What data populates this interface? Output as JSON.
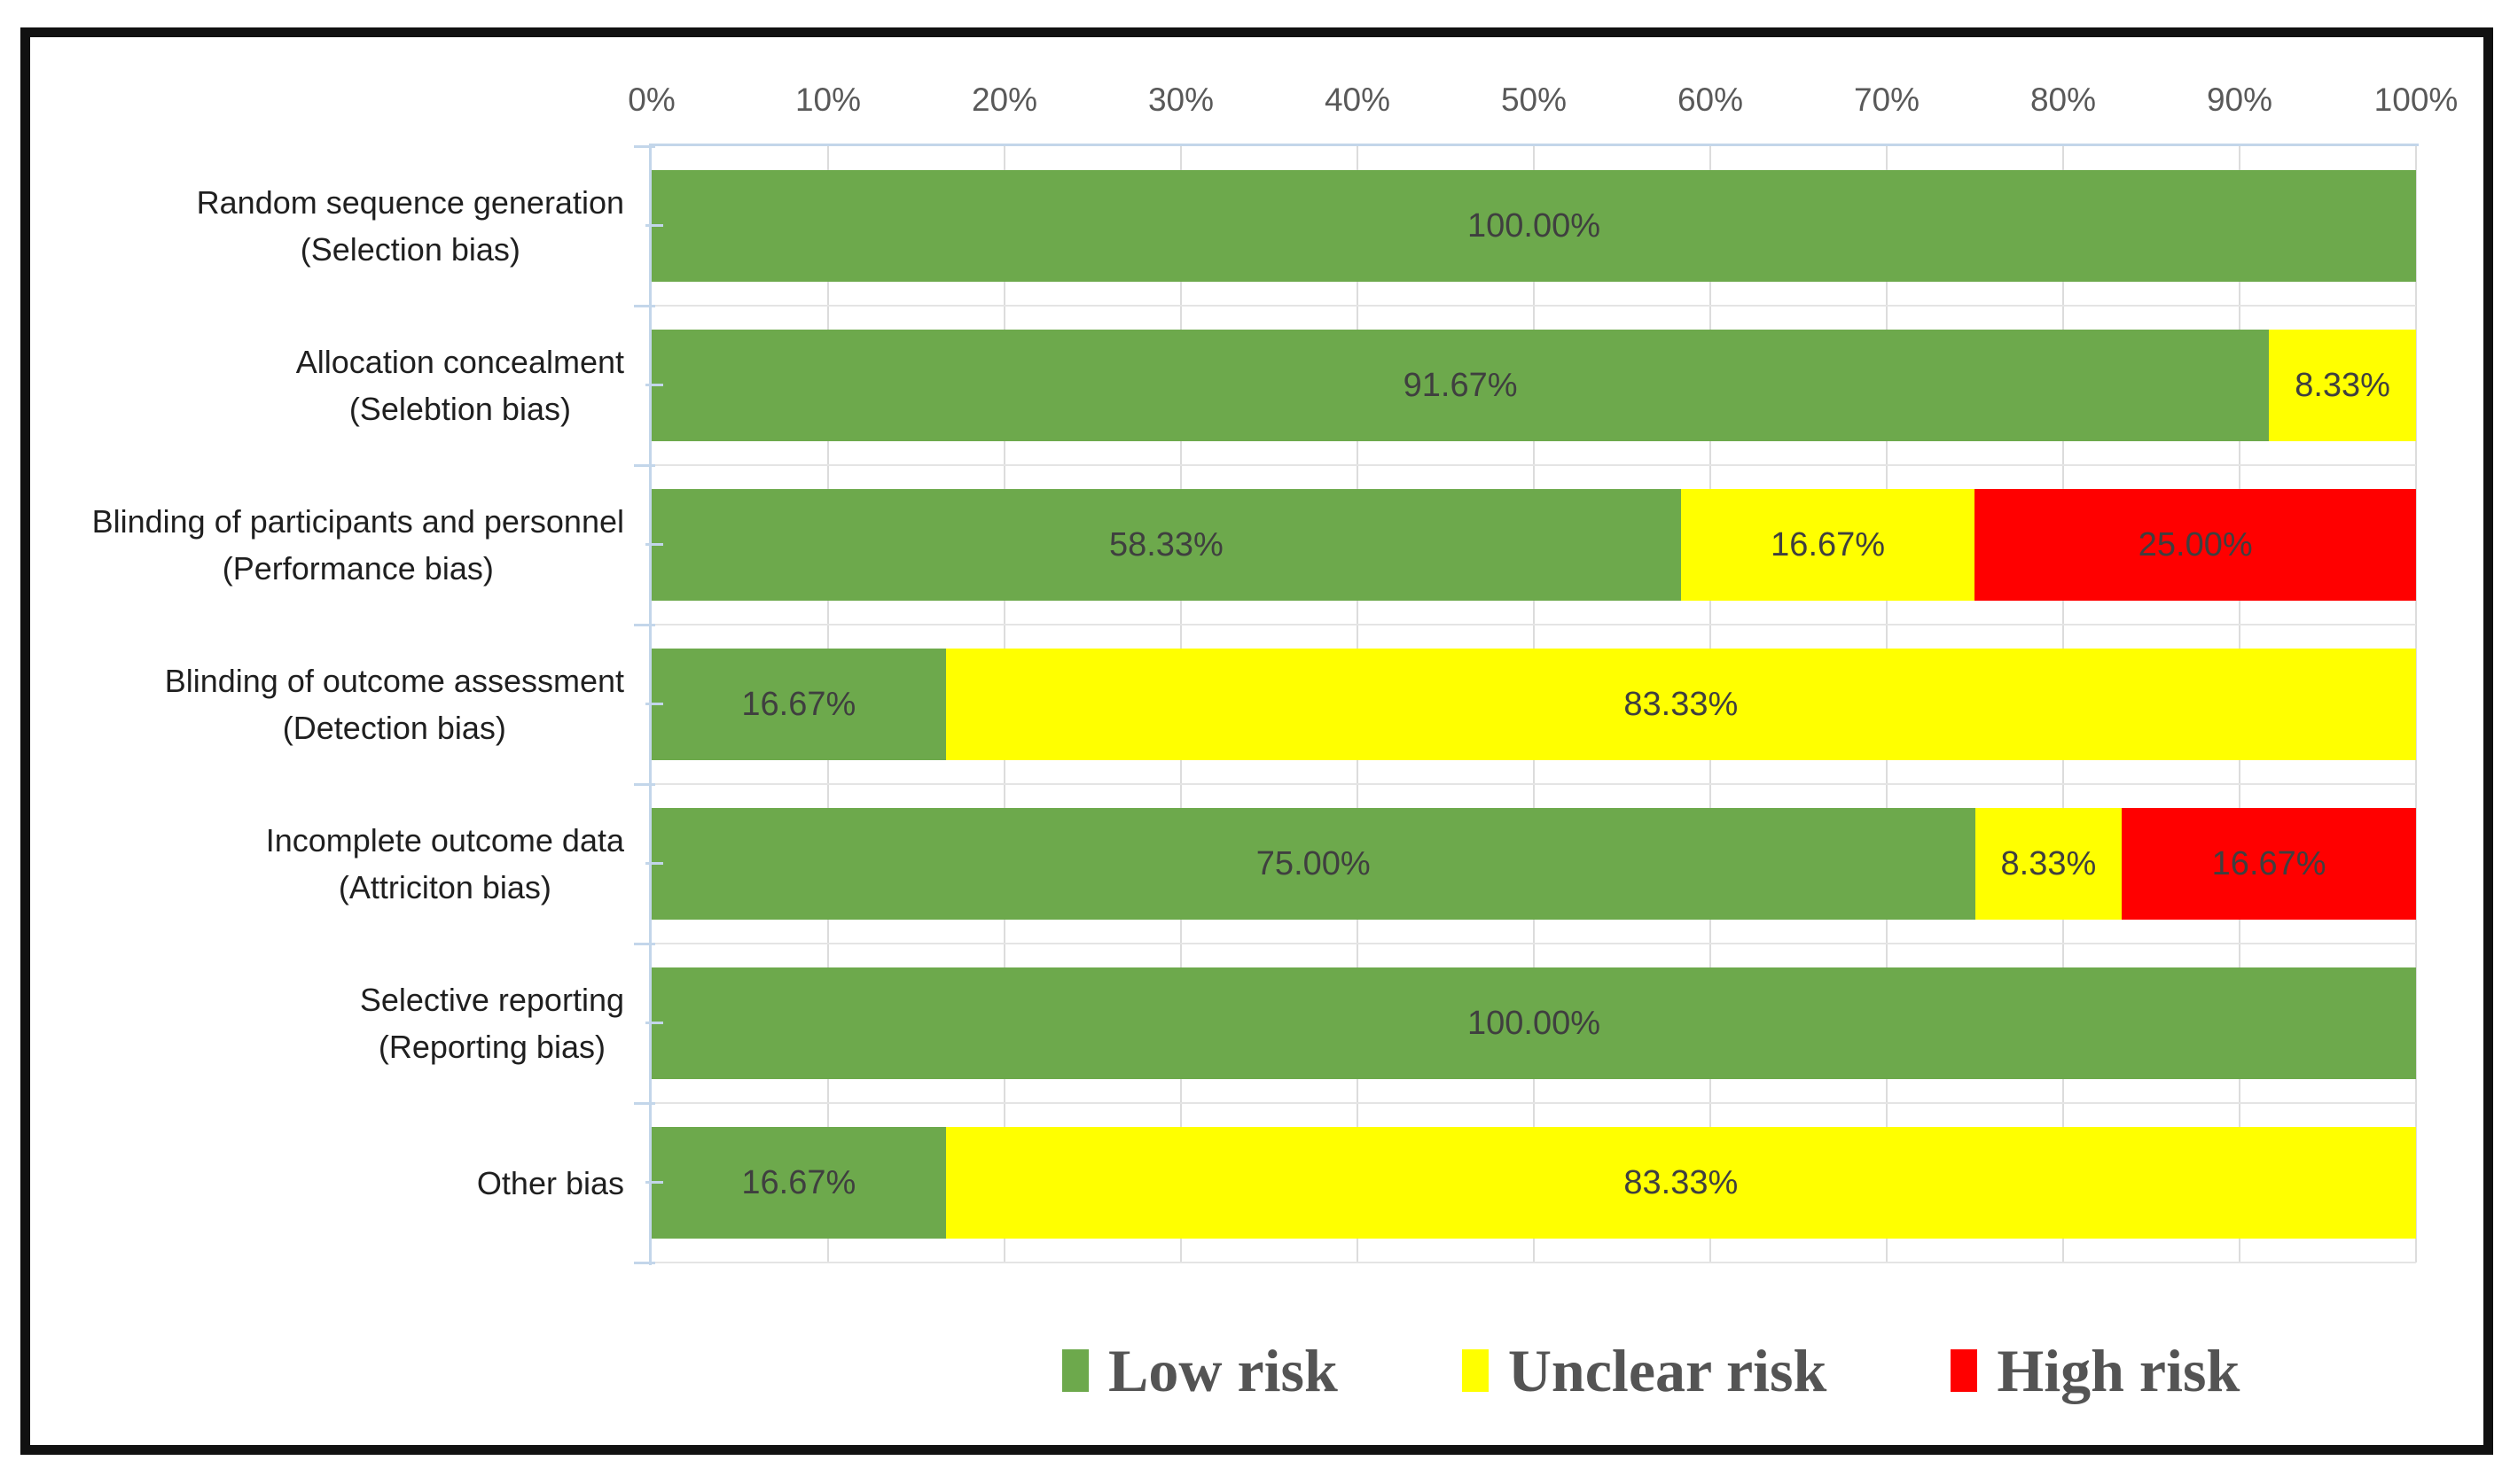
{
  "chart_data": {
    "type": "bar",
    "orientation": "horizontal",
    "stacked": true,
    "title": "",
    "x_axis": {
      "position": "top",
      "min": 0,
      "max": 100,
      "unit": "%",
      "tick_labels": [
        "0%",
        "10%",
        "20%",
        "30%",
        "40%",
        "50%",
        "60%",
        "70%",
        "80%",
        "90%",
        "100%"
      ]
    },
    "categories": [
      {
        "lines": [
          "Random sequence generation",
          "(Selection bias)"
        ]
      },
      {
        "lines": [
          "Allocation concealment",
          "(Selebtion bias)"
        ]
      },
      {
        "lines": [
          "Blinding of participants and personnel",
          "(Performance bias)"
        ]
      },
      {
        "lines": [
          "Blinding of outcome assessment",
          "(Detection bias)"
        ]
      },
      {
        "lines": [
          "Incomplete outcome data",
          "(Attriciton bias)"
        ]
      },
      {
        "lines": [
          "Selective reporting",
          "(Reporting bias)"
        ]
      },
      {
        "lines": [
          "Other bias"
        ]
      }
    ],
    "series": [
      {
        "name": "Low risk",
        "color": "#6DA94C",
        "values": [
          100,
          91.67,
          58.33,
          16.67,
          75,
          100,
          16.67
        ]
      },
      {
        "name": "Unclear risk",
        "color": "#FFFF00",
        "values": [
          0,
          8.33,
          16.67,
          83.33,
          8.33,
          0,
          83.33
        ]
      },
      {
        "name": "High risk",
        "color": "#FF0000",
        "values": [
          0,
          0,
          25,
          0,
          16.67,
          0,
          0
        ]
      }
    ],
    "data_labels": [
      [
        "100.00%",
        "",
        ""
      ],
      [
        "91.67%",
        "8.33%",
        ""
      ],
      [
        "58.33%",
        "16.67%",
        "25.00%"
      ],
      [
        "16.67%",
        "83.33%",
        ""
      ],
      [
        "75.00%",
        "8.33%",
        "16.67%"
      ],
      [
        "100.00%",
        "",
        ""
      ],
      [
        "16.67%",
        "83.33%",
        ""
      ]
    ],
    "legend": {
      "position": "bottom",
      "items": [
        {
          "label": "Low risk",
          "color": "#6DA94C"
        },
        {
          "label": "Unclear risk",
          "color": "#FFFF00"
        },
        {
          "label": "High risk",
          "color": "#FF0000"
        }
      ]
    },
    "grid": {
      "vertical": true,
      "interval_percent": 10
    },
    "colors": {
      "gridline": "#DCDCDC",
      "row_line": "#E4E4E4",
      "axis_line": "#C3D6EA",
      "data_label": "#3F3F3F",
      "tick_label": "#595959",
      "category_label": "#1F1F1F",
      "legend_text": "#545454",
      "frame_border": "#111111",
      "background": "#FFFFFF"
    }
  }
}
